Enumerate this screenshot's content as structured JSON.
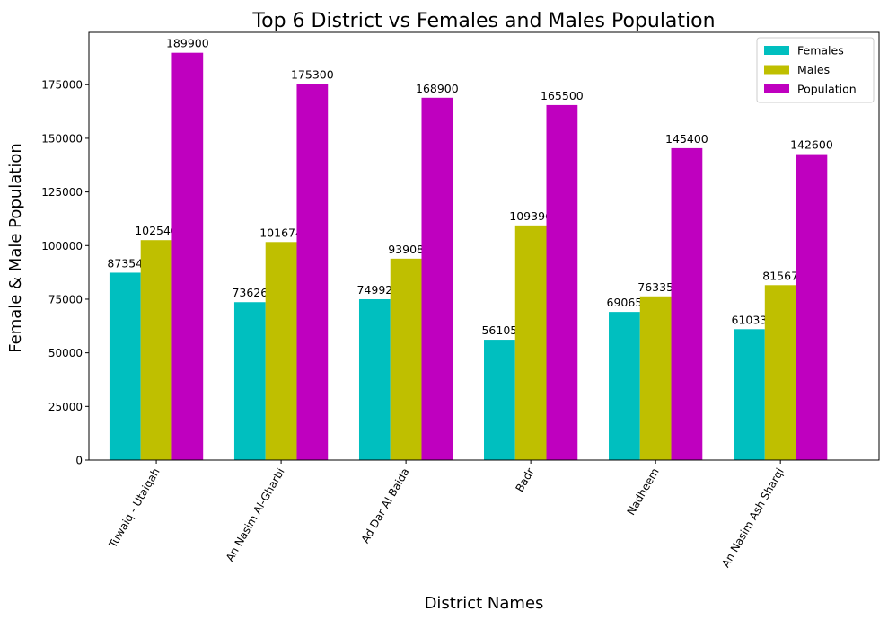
{
  "chart_data": {
    "type": "bar",
    "title": "Top 6 District vs Females and Males Population",
    "xlabel": "District Names",
    "ylabel": "Female & Male Population",
    "categories": [
      "Tuwaiq - Utaiqah",
      "An Nasim Al-Gharbi",
      "Ad Dar Al Baida",
      "Badr",
      "Nadheem",
      "An Nasim Ash Sharqi"
    ],
    "series": [
      {
        "name": "Females",
        "color": "#00bfbf",
        "values": [
          87354,
          73626,
          74992,
          56105,
          69065,
          61033
        ]
      },
      {
        "name": "Males",
        "color": "#bfbf00",
        "values": [
          102546,
          101674,
          93908,
          109396,
          76335,
          81567
        ]
      },
      {
        "name": "Population",
        "color": "#bf00bf",
        "values": [
          189900,
          175300,
          168900,
          165500,
          145400,
          142600
        ]
      }
    ],
    "ylim": [
      0,
      199400
    ],
    "yticks": [
      0,
      25000,
      50000,
      75000,
      100000,
      125000,
      150000,
      175000
    ],
    "legend_position": "top-right",
    "grid": false
  }
}
